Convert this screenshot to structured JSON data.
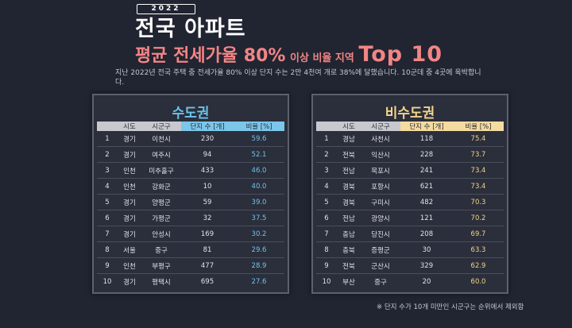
{
  "header": {
    "year": "2022",
    "title_line1": "전국 아파트",
    "title_line2_a": "평균 전세가율 80%",
    "title_line2_b": "이상 비율 지역",
    "title_line2_c": "Top 10"
  },
  "description": "지난 2022년 전국 주택 중 전세가율 80% 이상 단지 수는 2만 4천여 개로 38%에 달했습니다. 10군데 중 4곳에 육박합니다.",
  "columns": [
    "시도",
    "시군구",
    "단지 수 [개]",
    "비율 [%]"
  ],
  "capital": {
    "title": "수도권",
    "rows": [
      {
        "rank": "1",
        "sido": "경기",
        "sgg": "이천시",
        "count": "230",
        "rate": "59.6"
      },
      {
        "rank": "2",
        "sido": "경기",
        "sgg": "여주시",
        "count": "94",
        "rate": "52.1"
      },
      {
        "rank": "3",
        "sido": "인천",
        "sgg": "미추홀구",
        "count": "433",
        "rate": "46.0"
      },
      {
        "rank": "4",
        "sido": "인천",
        "sgg": "강화군",
        "count": "10",
        "rate": "40.0"
      },
      {
        "rank": "5",
        "sido": "경기",
        "sgg": "양평군",
        "count": "59",
        "rate": "39.0"
      },
      {
        "rank": "6",
        "sido": "경기",
        "sgg": "가평군",
        "count": "32",
        "rate": "37.5"
      },
      {
        "rank": "7",
        "sido": "경기",
        "sgg": "안성시",
        "count": "169",
        "rate": "30.2"
      },
      {
        "rank": "8",
        "sido": "서울",
        "sgg": "중구",
        "count": "81",
        "rate": "29.6"
      },
      {
        "rank": "9",
        "sido": "인천",
        "sgg": "부평구",
        "count": "477",
        "rate": "28.9"
      },
      {
        "rank": "10",
        "sido": "경기",
        "sgg": "평택시",
        "count": "695",
        "rate": "27.6"
      }
    ]
  },
  "noncapital": {
    "title": "비수도권",
    "rows": [
      {
        "rank": "1",
        "sido": "경남",
        "sgg": "사천시",
        "count": "118",
        "rate": "75.4"
      },
      {
        "rank": "2",
        "sido": "전북",
        "sgg": "익산시",
        "count": "228",
        "rate": "73.7"
      },
      {
        "rank": "3",
        "sido": "전남",
        "sgg": "목포시",
        "count": "241",
        "rate": "73.4"
      },
      {
        "rank": "4",
        "sido": "경북",
        "sgg": "포항시",
        "count": "621",
        "rate": "73.4"
      },
      {
        "rank": "5",
        "sido": "경북",
        "sgg": "구미시",
        "count": "482",
        "rate": "70.3"
      },
      {
        "rank": "6",
        "sido": "전남",
        "sgg": "광양시",
        "count": "121",
        "rate": "70.2"
      },
      {
        "rank": "7",
        "sido": "충남",
        "sgg": "당진시",
        "count": "208",
        "rate": "69.7"
      },
      {
        "rank": "8",
        "sido": "충북",
        "sgg": "증평군",
        "count": "30",
        "rate": "63.3"
      },
      {
        "rank": "9",
        "sido": "전북",
        "sgg": "군산시",
        "count": "329",
        "rate": "62.9"
      },
      {
        "rank": "10",
        "sido": "부산",
        "sgg": "중구",
        "count": "20",
        "rate": "60.0"
      }
    ]
  },
  "footnote": "※ 단지 수가 10개 미만인 시군구는 순위에서 제외함",
  "colors": {
    "background": "#212431",
    "title_accent": "#f28585",
    "capital_accent": "#6cc4ec",
    "noncapital_accent": "#f2d48a"
  }
}
